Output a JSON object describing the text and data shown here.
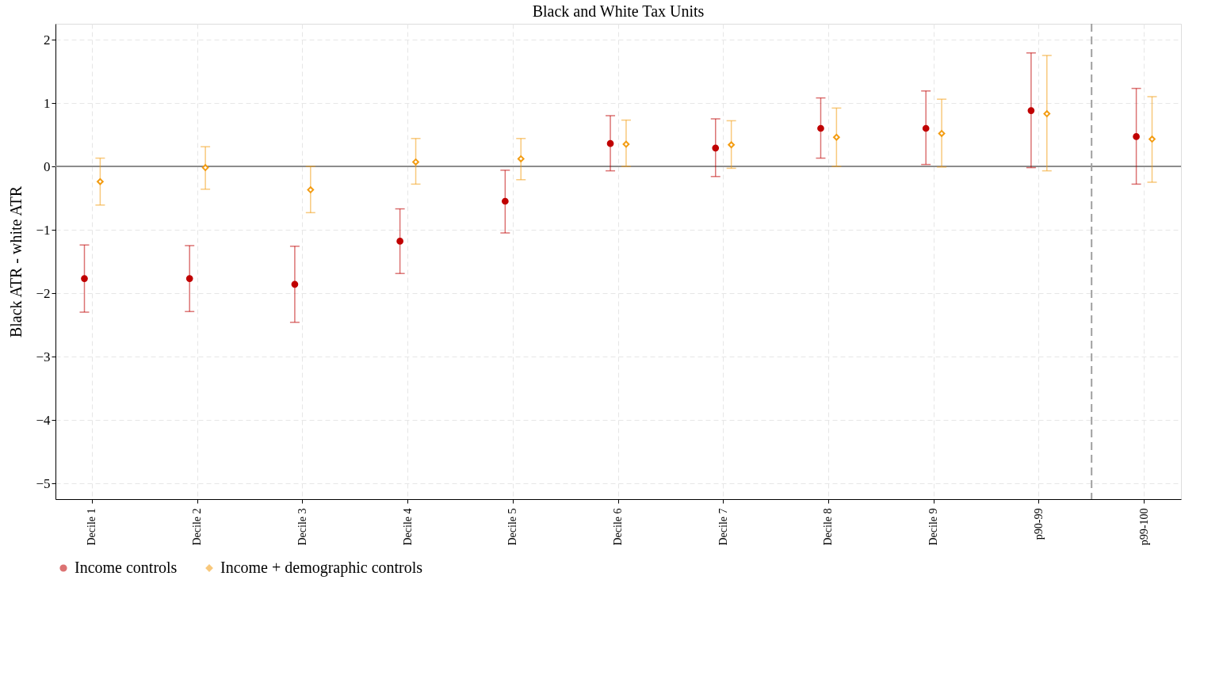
{
  "chart_data": {
    "type": "scatter",
    "title": "Black and White Tax Units",
    "ylabel": "Black ATR - white ATR",
    "categories": [
      "Decile 1",
      "Decile 2",
      "Decile 3",
      "Decile 4",
      "Decile 5",
      "Decile 6",
      "Decile 7",
      "Decile 8",
      "Decile 9",
      "p90-99",
      "p99-100"
    ],
    "series": [
      {
        "name": "Income controls",
        "color": "#c00000",
        "marker": "circle",
        "values": [
          -1.77,
          -1.77,
          -1.86,
          -1.18,
          -0.55,
          0.36,
          0.29,
          0.6,
          0.6,
          0.88,
          0.47
        ],
        "errors": [
          [
            -2.3,
            -1.24
          ],
          [
            -2.29,
            -1.25
          ],
          [
            -2.46,
            -1.26
          ],
          [
            -1.69,
            -0.67
          ],
          [
            -1.05,
            -0.06
          ],
          [
            -0.07,
            0.8
          ],
          [
            -0.16,
            0.75
          ],
          [
            0.13,
            1.08
          ],
          [
            0.03,
            1.19
          ],
          [
            -0.02,
            1.79
          ],
          [
            -0.28,
            1.23
          ]
        ]
      },
      {
        "name": "Income + demographic controls",
        "color": "#f39c12",
        "marker": "diamond",
        "values": [
          -0.24,
          -0.02,
          -0.37,
          0.07,
          0.12,
          0.35,
          0.34,
          0.46,
          0.52,
          0.83,
          0.43
        ],
        "errors": [
          [
            -0.61,
            0.13
          ],
          [
            -0.36,
            0.31
          ],
          [
            -0.73,
            0.0
          ],
          [
            -0.28,
            0.44
          ],
          [
            -0.21,
            0.44
          ],
          [
            0.0,
            0.73
          ],
          [
            -0.03,
            0.72
          ],
          [
            0.0,
            0.92
          ],
          [
            -0.01,
            1.06
          ],
          [
            -0.07,
            1.75
          ],
          [
            -0.25,
            1.1
          ]
        ]
      }
    ],
    "ylim": [
      -5.25,
      2.25
    ],
    "yticks": [
      -5,
      -4,
      -3,
      -2,
      -1,
      0,
      1,
      2
    ],
    "ref_lines": [
      {
        "axis": "y",
        "value": 0,
        "color": "#8c8c8c",
        "line_style": "solid"
      },
      {
        "axis": "x",
        "value": "p99-100",
        "color": "#a0a0a0",
        "line_style": "dashed"
      }
    ],
    "grid": true,
    "legend": "bottom"
  }
}
